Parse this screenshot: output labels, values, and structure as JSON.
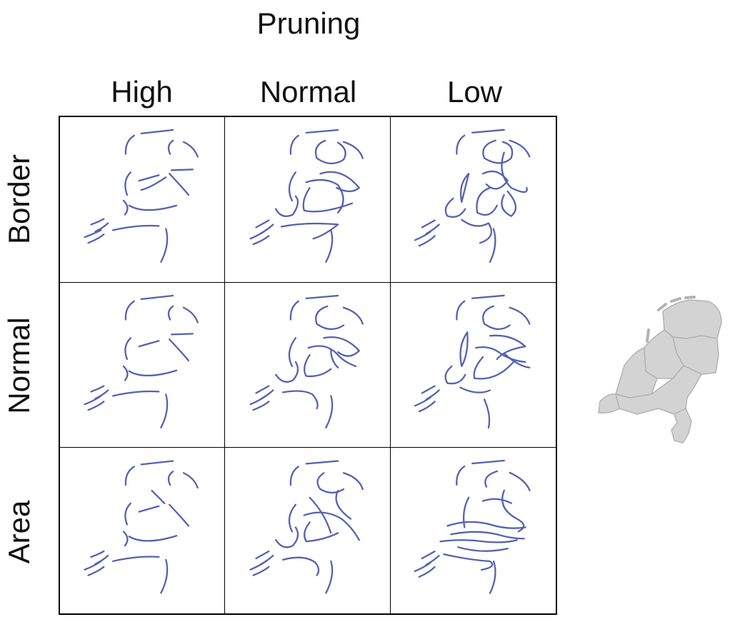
{
  "title": "Pruning",
  "columns": [
    "High",
    "Normal",
    "Low"
  ],
  "rows": [
    "Border",
    "Normal",
    "Area"
  ],
  "colors": {
    "stroke": "#5561b0",
    "map_fill": "#d3d3d3",
    "map_border": "#b3b3b3"
  },
  "reference_map": "netherlands-provinces-map"
}
